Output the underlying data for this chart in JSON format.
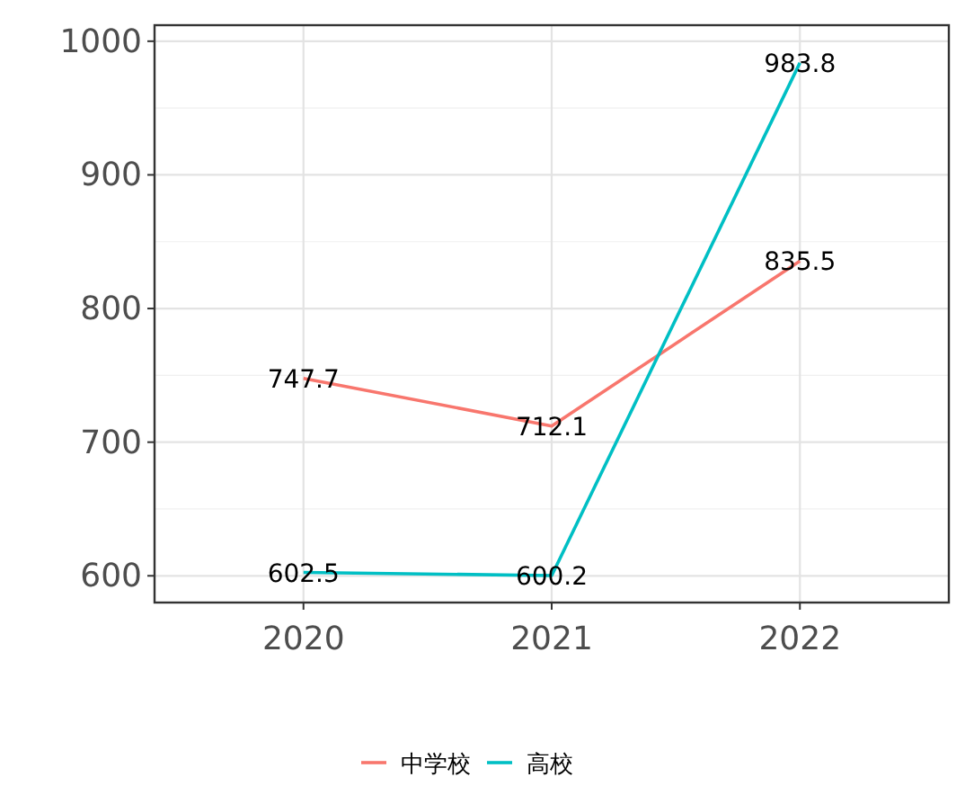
{
  "chart_data": {
    "type": "line",
    "categories": [
      "2020",
      "2021",
      "2022"
    ],
    "series": [
      {
        "name": "中学校",
        "color": "#f8766d",
        "values": [
          747.7,
          712.1,
          835.5
        ]
      },
      {
        "name": "高校",
        "color": "#00bfc4",
        "values": [
          602.5,
          600.2,
          983.8
        ]
      }
    ],
    "ylim": [
      580,
      1012
    ],
    "yticks": [
      600,
      700,
      800,
      900,
      1000
    ],
    "grid": true,
    "legend": "bottom",
    "data_labels": true
  }
}
